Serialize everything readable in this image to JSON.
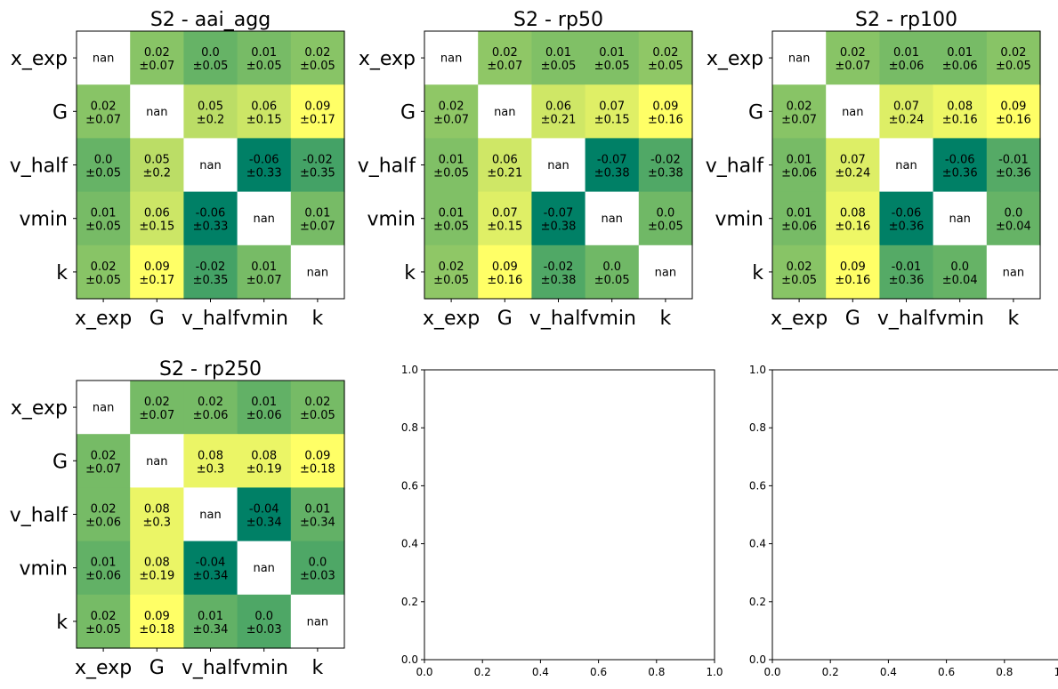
{
  "chart_data": [
    {
      "type": "heatmap",
      "title": "S2 - aai_agg",
      "labels": [
        "x_exp",
        "G",
        "v_half",
        "vmin",
        "k"
      ],
      "mean": [
        [
          null,
          0.02,
          0.0,
          0.01,
          0.02
        ],
        [
          0.02,
          null,
          0.05,
          0.06,
          0.09
        ],
        [
          0.0,
          0.05,
          null,
          -0.06,
          -0.02
        ],
        [
          0.01,
          0.06,
          -0.06,
          null,
          0.01
        ],
        [
          0.02,
          0.09,
          -0.02,
          0.01,
          null
        ]
      ],
      "cells": [
        [
          "nan",
          "0.02\n±0.07",
          "0.0\n±0.05",
          "0.01\n±0.05",
          "0.02\n±0.05"
        ],
        [
          "0.02\n±0.07",
          "nan",
          "0.05\n±0.2",
          "0.06\n±0.15",
          "0.09\n±0.17"
        ],
        [
          "0.0\n±0.05",
          "0.05\n±0.2",
          "nan",
          "-0.06\n±0.33",
          "-0.02\n±0.35"
        ],
        [
          "0.01\n±0.05",
          "0.06\n±0.15",
          "-0.06\n±0.33",
          "nan",
          "0.01\n±0.07"
        ],
        [
          "0.02\n±0.05",
          "0.09\n±0.17",
          "-0.02\n±0.35",
          "0.01\n±0.07",
          "nan"
        ]
      ]
    },
    {
      "type": "heatmap",
      "title": "S2 - rp50",
      "labels": [
        "x_exp",
        "G",
        "v_half",
        "vmin",
        "k"
      ],
      "mean": [
        [
          null,
          0.02,
          0.01,
          0.01,
          0.02
        ],
        [
          0.02,
          null,
          0.06,
          0.07,
          0.09
        ],
        [
          0.01,
          0.06,
          null,
          -0.07,
          -0.02
        ],
        [
          0.01,
          0.07,
          -0.07,
          null,
          0.0
        ],
        [
          0.02,
          0.09,
          -0.02,
          0.0,
          null
        ]
      ],
      "cells": [
        [
          "nan",
          "0.02\n±0.07",
          "0.01\n±0.05",
          "0.01\n±0.05",
          "0.02\n±0.05"
        ],
        [
          "0.02\n±0.07",
          "nan",
          "0.06\n±0.21",
          "0.07\n±0.15",
          "0.09\n±0.16"
        ],
        [
          "0.01\n±0.05",
          "0.06\n±0.21",
          "nan",
          "-0.07\n±0.38",
          "-0.02\n±0.38"
        ],
        [
          "0.01\n±0.05",
          "0.07\n±0.15",
          "-0.07\n±0.38",
          "nan",
          "0.0\n±0.05"
        ],
        [
          "0.02\n±0.05",
          "0.09\n±0.16",
          "-0.02\n±0.38",
          "0.0\n±0.05",
          "nan"
        ]
      ]
    },
    {
      "type": "heatmap",
      "title": "S2 - rp100",
      "labels": [
        "x_exp",
        "G",
        "v_half",
        "vmin",
        "k"
      ],
      "mean": [
        [
          null,
          0.02,
          0.01,
          0.01,
          0.02
        ],
        [
          0.02,
          null,
          0.07,
          0.08,
          0.09
        ],
        [
          0.01,
          0.07,
          null,
          -0.06,
          -0.01
        ],
        [
          0.01,
          0.08,
          -0.06,
          null,
          0.0
        ],
        [
          0.02,
          0.09,
          -0.01,
          0.0,
          null
        ]
      ],
      "cells": [
        [
          "nan",
          "0.02\n±0.07",
          "0.01\n±0.06",
          "0.01\n±0.06",
          "0.02\n±0.05"
        ],
        [
          "0.02\n±0.07",
          "nan",
          "0.07\n±0.24",
          "0.08\n±0.16",
          "0.09\n±0.16"
        ],
        [
          "0.01\n±0.06",
          "0.07\n±0.24",
          "nan",
          "-0.06\n±0.36",
          "-0.01\n±0.36"
        ],
        [
          "0.01\n±0.06",
          "0.08\n±0.16",
          "-0.06\n±0.36",
          "nan",
          "0.0\n±0.04"
        ],
        [
          "0.02\n±0.05",
          "0.09\n±0.16",
          "-0.01\n±0.36",
          "0.0\n±0.04",
          "nan"
        ]
      ]
    },
    {
      "type": "heatmap",
      "title": "S2 - rp250",
      "labels": [
        "x_exp",
        "G",
        "v_half",
        "vmin",
        "k"
      ],
      "mean": [
        [
          null,
          0.02,
          0.02,
          0.01,
          0.02
        ],
        [
          0.02,
          null,
          0.08,
          0.08,
          0.09
        ],
        [
          0.02,
          0.08,
          null,
          -0.04,
          0.01
        ],
        [
          0.01,
          0.08,
          -0.04,
          null,
          0.0
        ],
        [
          0.02,
          0.09,
          0.01,
          0.0,
          null
        ]
      ],
      "cells": [
        [
          "nan",
          "0.02\n±0.07",
          "0.02\n±0.06",
          "0.01\n±0.06",
          "0.02\n±0.05"
        ],
        [
          "0.02\n±0.07",
          "nan",
          "0.08\n±0.3",
          "0.08\n±0.19",
          "0.09\n±0.18"
        ],
        [
          "0.02\n±0.06",
          "0.08\n±0.3",
          "nan",
          "-0.04\n±0.34",
          "0.01\n±0.34"
        ],
        [
          "0.01\n±0.06",
          "0.08\n±0.19",
          "-0.04\n±0.34",
          "nan",
          "0.0\n±0.03"
        ],
        [
          "0.02\n±0.05",
          "0.09\n±0.18",
          "0.01\n±0.34",
          "0.0\n±0.03",
          "nan"
        ]
      ]
    },
    {
      "type": "scatter",
      "title": "",
      "xlim": [
        0.0,
        1.0
      ],
      "ylim": [
        0.0,
        1.0
      ],
      "xticks": [
        "0.0",
        "0.2",
        "0.4",
        "0.6",
        "0.8",
        "1.0"
      ],
      "yticks": [
        "0.0",
        "0.2",
        "0.4",
        "0.6",
        "0.8",
        "1.0"
      ],
      "series": []
    },
    {
      "type": "scatter",
      "title": "",
      "xlim": [
        0.0,
        1.0
      ],
      "ylim": [
        0.0,
        1.0
      ],
      "xticks": [
        "0.0",
        "0.2",
        "0.4",
        "0.6",
        "0.8",
        "1.0"
      ],
      "yticks": [
        "0.0",
        "0.2",
        "0.4",
        "0.6",
        "0.8",
        "1.0"
      ],
      "series": []
    }
  ],
  "colormap": {
    "name": "summer",
    "low": "#008066",
    "high": "#ffff66",
    "nan_color": "#ffffff"
  }
}
